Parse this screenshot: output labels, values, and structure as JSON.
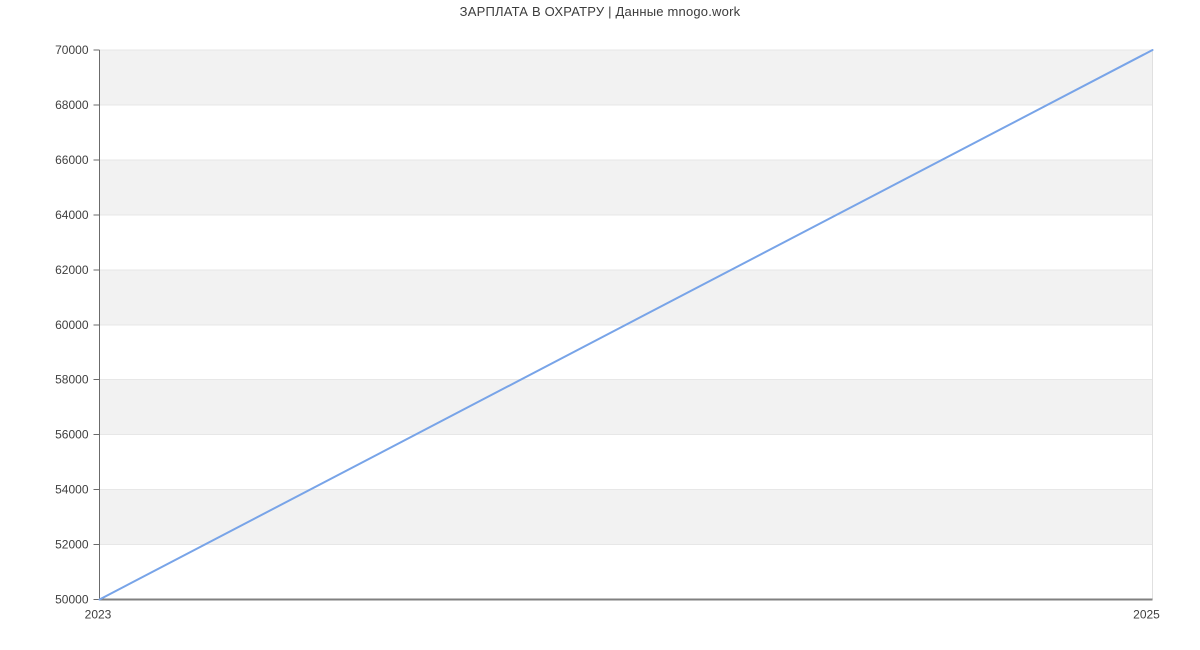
{
  "page_title": "ЗАРПЛАТА В ОХРАТРУ | Данные mnogo.work",
  "colors": {
    "background": "#ffffff",
    "title": "#3c3c3c",
    "line": "#78a4e8",
    "band_gray": "#f2f2f2",
    "band_white": "#ffffff",
    "gridline": "#e7e7e7",
    "axis": "#6b6b6b",
    "bottom_axis": "#808080",
    "right_border": "#e0e0e0",
    "tick_label": "#3f3f3f"
  },
  "chart_data": {
    "type": "line",
    "title": "ЗАРПЛАТА В ОХРАТРУ | Данные mnogo.work",
    "x": [
      2023,
      2025
    ],
    "series": [
      {
        "name": "",
        "values": [
          50000,
          70000
        ]
      }
    ],
    "x_tick_labels": [
      "2023",
      "2025"
    ],
    "y_ticks": [
      50000,
      52000,
      54000,
      56000,
      58000,
      60000,
      62000,
      64000,
      66000,
      68000,
      70000
    ],
    "xlim": [
      2023,
      2025
    ],
    "ylim": [
      50000,
      70000
    ],
    "xlabel": "",
    "ylabel": "",
    "legend": "none",
    "grid": "alternating horizontal bands every 2000, light gridline at each y tick"
  }
}
